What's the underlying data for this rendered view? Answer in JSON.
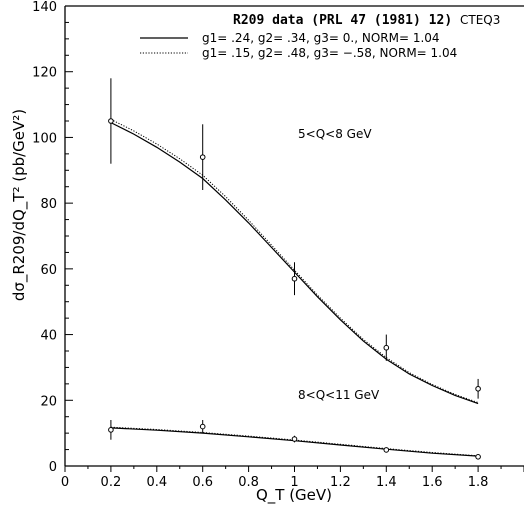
{
  "chart_data": {
    "type": "scatter",
    "title": "R209 data (PRL 47 (1981) 12)",
    "tag": "CTEQ3",
    "xlabel": "Q_T (GeV)",
    "ylabel": "dσ_R209/dQ_T² (pb/GeV²)",
    "xlim": [
      0,
      2
    ],
    "ylim": [
      0,
      140
    ],
    "x_ticks": [
      "0",
      "0.2",
      "0.4",
      "0.6",
      "0.8",
      "1",
      "1.2",
      "1.4",
      "1.6",
      "1.8"
    ],
    "y_ticks": [
      "0",
      "20",
      "40",
      "60",
      "80",
      "100",
      "120",
      "140"
    ],
    "legend": [
      {
        "label": "g1= .24, g2= .34, g3= 0., NORM= 1.04",
        "style": "solid"
      },
      {
        "label": "g1= .15, g2= .48, g3= −.58, NORM= 1.04",
        "style": "dotted"
      }
    ],
    "annotations": [
      {
        "text": "5<Q<8 GeV"
      },
      {
        "text": "8<Q<11 GeV"
      }
    ],
    "series": [
      {
        "points": [
          {
            "x": 0.2,
            "y": 105,
            "err_lo": 13,
            "err_hi": 13
          },
          {
            "x": 0.6,
            "y": 94,
            "err_lo": 10,
            "err_hi": 10
          },
          {
            "x": 1.0,
            "y": 57,
            "err_lo": 5,
            "err_hi": 5
          },
          {
            "x": 1.4,
            "y": 36,
            "err_lo": 4,
            "err_hi": 4
          },
          {
            "x": 1.8,
            "y": 23.5,
            "err_lo": 3,
            "err_hi": 3
          }
        ],
        "fit_solid": [
          [
            0.2,
            104.5
          ],
          [
            0.3,
            101
          ],
          [
            0.4,
            97
          ],
          [
            0.5,
            92.5
          ],
          [
            0.6,
            87.5
          ],
          [
            0.7,
            81
          ],
          [
            0.8,
            74
          ],
          [
            0.9,
            66.5
          ],
          [
            1.0,
            59
          ],
          [
            1.1,
            51.5
          ],
          [
            1.2,
            44.5
          ],
          [
            1.3,
            38
          ],
          [
            1.4,
            32.5
          ],
          [
            1.5,
            28
          ],
          [
            1.6,
            24.5
          ],
          [
            1.7,
            21.5
          ],
          [
            1.8,
            19
          ]
        ],
        "fit_dotted": [
          [
            0.2,
            105.5
          ],
          [
            0.3,
            102
          ],
          [
            0.4,
            98
          ],
          [
            0.5,
            93.5
          ],
          [
            0.6,
            88.5
          ],
          [
            0.7,
            82
          ],
          [
            0.8,
            74.8
          ],
          [
            0.9,
            67.2
          ],
          [
            1.0,
            59.6
          ],
          [
            1.1,
            52
          ],
          [
            1.2,
            45
          ],
          [
            1.3,
            38.5
          ],
          [
            1.4,
            33
          ],
          [
            1.5,
            28.4
          ],
          [
            1.6,
            24.8
          ],
          [
            1.7,
            21.8
          ],
          [
            1.8,
            19.3
          ]
        ]
      },
      {
        "points": [
          {
            "x": 0.2,
            "y": 11,
            "err_lo": 3,
            "err_hi": 3
          },
          {
            "x": 0.6,
            "y": 12,
            "err_lo": 2,
            "err_hi": 2
          },
          {
            "x": 1.0,
            "y": 8.2,
            "err_lo": 1,
            "err_hi": 1
          },
          {
            "x": 1.4,
            "y": 4.9,
            "err_lo": 0.6,
            "err_hi": 0.6
          },
          {
            "x": 1.8,
            "y": 2.8,
            "err_lo": 0.5,
            "err_hi": 0.5
          }
        ],
        "fit_solid": [
          [
            0.2,
            11.6
          ],
          [
            0.4,
            10.9
          ],
          [
            0.6,
            10.0
          ],
          [
            0.8,
            8.9
          ],
          [
            1.0,
            7.7
          ],
          [
            1.2,
            6.4
          ],
          [
            1.4,
            5.1
          ],
          [
            1.6,
            3.9
          ],
          [
            1.8,
            3.0
          ]
        ],
        "fit_dotted": [
          [
            0.2,
            11.8
          ],
          [
            0.4,
            11.1
          ],
          [
            0.6,
            10.2
          ],
          [
            0.8,
            9.1
          ],
          [
            1.0,
            7.9
          ],
          [
            1.2,
            6.6
          ],
          [
            1.4,
            5.3
          ],
          [
            1.6,
            4.1
          ],
          [
            1.8,
            3.1
          ]
        ]
      }
    ]
  }
}
